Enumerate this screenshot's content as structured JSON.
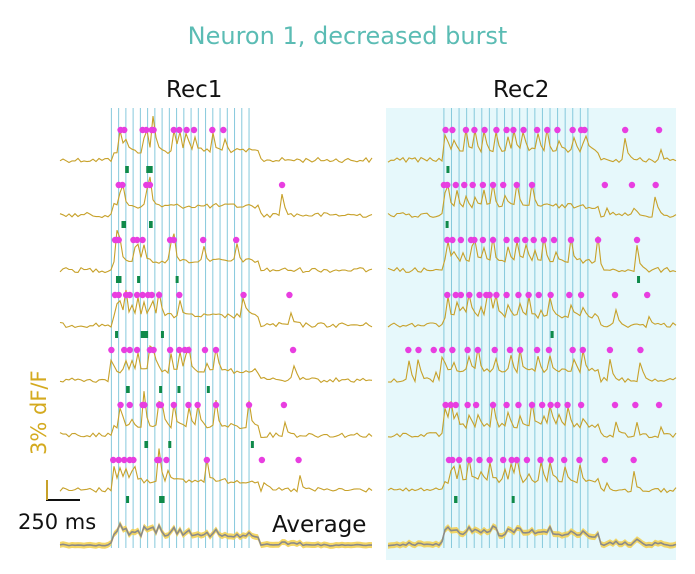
{
  "chart_data": {
    "type": "line",
    "title": "Neuron 1, decreased burst",
    "panels": [
      {
        "label": "Rec1",
        "x_ms_range": [
          0,
          1700
        ],
        "stim_onset_ms": 280,
        "stim_offset_ms": 1030,
        "stimulus_pulses": 20,
        "trials": [
          {
            "events_ms": [
              330,
              350,
              450,
              470,
              500,
              510,
              620,
              650,
              690,
              730,
              830,
              890
            ],
            "bursts_ms": [
              [
                355,
                375
              ],
              [
                470,
                505
              ]
            ]
          },
          {
            "events_ms": [
              320,
              340,
              470,
              490,
              1210
            ],
            "bursts_ms": [
              [
                335,
                360
              ],
              [
                485,
                505
              ]
            ]
          },
          {
            "events_ms": [
              300,
              310,
              320,
              400,
              420,
              450,
              600,
              620,
              780,
              960
            ],
            "bursts_ms": [
              [
                305,
                335
              ],
              [
                420,
                428
              ],
              [
                630,
                638
              ]
            ]
          },
          {
            "events_ms": [
              300,
              320,
              360,
              380,
              420,
              450,
              480,
              500,
              540,
              650,
              1000,
              1250
            ],
            "bursts_ms": [
              [
                300,
                315
              ],
              [
                440,
                480
              ],
              [
                550,
                560
              ]
            ]
          },
          {
            "events_ms": [
              280,
              350,
              380,
              420,
              490,
              510,
              600,
              650,
              680,
              700,
              790,
              850,
              1270
            ],
            "bursts_ms": [
              [
                360,
                380
              ],
              [
                540,
                555
              ],
              [
                640,
                655
              ],
              [
                800,
                810
              ]
            ]
          },
          {
            "events_ms": [
              330,
              380,
              450,
              460,
              540,
              550,
              620,
              700,
              750,
              850,
              1030,
              1220
            ],
            "bursts_ms": [
              [
                460,
                480
              ],
              [
                590,
                605
              ],
              [
                1040,
                1048
              ]
            ]
          },
          {
            "events_ms": [
              290,
              320,
              350,
              380,
              400,
              530,
              540,
              580,
              800,
              1100,
              1300
            ],
            "bursts_ms": [
              [
                360,
                372
              ],
              [
                540,
                570
              ]
            ]
          }
        ]
      },
      {
        "label": "Rec2",
        "x_ms_range": [
          0,
          1700
        ],
        "stim_onset_ms": 330,
        "stim_offset_ms": 1180,
        "stimulus_pulses": 20,
        "trials": [
          {
            "events_ms": [
              340,
              380,
              460,
              510,
              570,
              640,
              700,
              740,
              800,
              880,
              940,
              1000,
              1090,
              1140,
              1160,
              1400,
              1600
            ],
            "bursts_ms": [
              [
                345,
                355
              ]
            ]
          },
          {
            "events_ms": [
              330,
              350,
              400,
              450,
              500,
              560,
              620,
              680,
              760,
              850,
              1280,
              1440,
              1580
            ],
            "bursts_ms": [
              [
                340,
                350
              ]
            ]
          },
          {
            "events_ms": [
              350,
              380,
              430,
              490,
              510,
              560,
              620,
              700,
              760,
              810,
              860,
              920,
              980,
              1080,
              1240,
              1470
            ],
            "bursts_ms": [
              [
                1470,
                1476
              ]
            ]
          },
          {
            "events_ms": [
              350,
              400,
              430,
              480,
              540,
              580,
              600,
              640,
              700,
              770,
              830,
              890,
              960,
              1070,
              1140,
              1340,
              1530
            ],
            "bursts_ms": [
              [
                960,
                975
              ]
            ]
          },
          {
            "events_ms": [
              120,
              180,
              270,
              320,
              380,
              470,
              530,
              630,
              720,
              780,
              880,
              950,
              1090,
              1150,
              1310,
              1490
            ],
            "bursts_ms": []
          },
          {
            "events_ms": [
              340,
              370,
              400,
              470,
              520,
              620,
              700,
              770,
              850,
              910,
              960,
              1000,
              1060,
              1140,
              1340,
              1460,
              1600
            ],
            "bursts_ms": []
          },
          {
            "events_ms": [
              360,
              380,
              420,
              480,
              540,
              600,
              680,
              730,
              760,
              820,
              900,
              960,
              1040,
              1130,
              1280,
              1450
            ],
            "bursts_ms": [
              [
                390,
                410
              ],
              [
                730,
                745
              ]
            ]
          }
        ]
      }
    ],
    "legend": [
      "Average"
    ],
    "scale_bar": {
      "x_label": "250 ms",
      "y_label": "3% dF/F"
    },
    "colors": {
      "trace": "#c7a12a",
      "event_marker": "#e83ee0",
      "stimulus_line": "#86c9dc",
      "burst_marker": "#0f8a4a",
      "average_fill": "#f2cf4a",
      "average_line": "#8a8a8a",
      "panel_bg": "#e6f8fb",
      "title": "#5bbcb4"
    }
  }
}
